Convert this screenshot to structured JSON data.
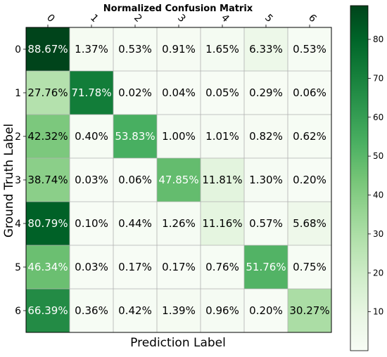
{
  "chart_data": {
    "type": "heatmap",
    "title": "Normalized Confusion Matrix",
    "xlabel": "Prediction Label",
    "ylabel": "Ground Truth Label",
    "x_categories": [
      "0",
      "1",
      "2",
      "3",
      "4",
      "5",
      "6"
    ],
    "y_categories": [
      "0",
      "1",
      "2",
      "3",
      "4",
      "5",
      "6"
    ],
    "values": [
      [
        88.67,
        1.37,
        0.53,
        0.91,
        1.65,
        6.33,
        0.53
      ],
      [
        27.76,
        71.78,
        0.02,
        0.04,
        0.05,
        0.29,
        0.06
      ],
      [
        42.32,
        0.4,
        53.83,
        1.0,
        1.01,
        0.82,
        0.62
      ],
      [
        38.74,
        0.03,
        0.06,
        47.85,
        11.81,
        1.3,
        0.2
      ],
      [
        80.79,
        0.1,
        0.44,
        1.26,
        11.16,
        0.57,
        5.68
      ],
      [
        46.34,
        0.03,
        0.17,
        0.17,
        0.76,
        51.76,
        0.75
      ],
      [
        66.39,
        0.36,
        0.42,
        1.39,
        0.96,
        0.2,
        30.27
      ]
    ],
    "cell_labels": [
      [
        "88.67%",
        "1.37%",
        "0.53%",
        "0.91%",
        "1.65%",
        "6.33%",
        "0.53%"
      ],
      [
        "27.76%",
        "71.78%",
        "0.02%",
        "0.04%",
        "0.05%",
        "0.29%",
        "0.06%"
      ],
      [
        "42.32%",
        "0.40%",
        "53.83%",
        "1.00%",
        "1.01%",
        "0.82%",
        "0.62%"
      ],
      [
        "38.74%",
        "0.03%",
        "0.06%",
        "47.85%",
        "11.81%",
        "1.30%",
        "0.20%"
      ],
      [
        "80.79%",
        "0.10%",
        "0.44%",
        "1.26%",
        "11.16%",
        "0.57%",
        "5.68%"
      ],
      [
        "46.34%",
        "0.03%",
        "0.17%",
        "0.17%",
        "0.76%",
        "51.76%",
        "0.75%"
      ],
      [
        "66.39%",
        "0.36%",
        "0.42%",
        "1.39%",
        "0.96%",
        "0.20%",
        "30.27%"
      ]
    ],
    "colorbar": {
      "colormap": "Greens",
      "range": [
        0,
        88.67
      ],
      "ticks": [
        "10",
        "20",
        "30",
        "40",
        "50",
        "60",
        "70",
        "80"
      ],
      "tick_values": [
        10,
        20,
        30,
        40,
        50,
        60,
        70,
        80
      ]
    },
    "grid": true,
    "text_color_threshold": 44.3
  }
}
